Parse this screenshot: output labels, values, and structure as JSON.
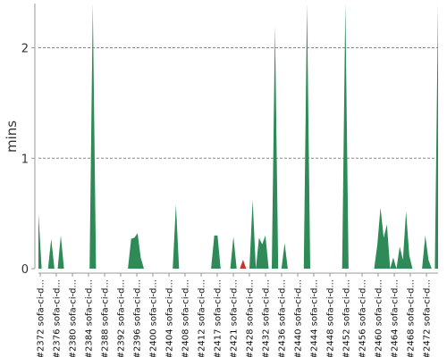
{
  "chart_data": {
    "type": "area",
    "title": "",
    "xlabel": "",
    "ylabel": "mins",
    "ylim": [
      0,
      2.4
    ],
    "yticks": [
      0,
      1,
      2
    ],
    "grid": "horizontal dashed at 1 and 2",
    "colors": {
      "normal": "#2e8b57",
      "highlight": "#c0392b",
      "grid": "#888888",
      "axis": "#999999"
    },
    "x_tick_labels": [
      "#2372 sofa-ci-d...",
      "#2376 sofa-ci-d...",
      "#2380 sofa-ci-d...",
      "#2384 sofa-ci-d...",
      "#2388 sofa-ci-d...",
      "#2392 sofa-ci-d...",
      "#2396 sofa-ci-d...",
      "#2400 sofa-ci-d...",
      "#2404 sofa-ci-d...",
      "#2408 sofa-ci-d...",
      "#2412 sofa-ci-d...",
      "#2417 sofa-ci-d...",
      "#2421 sofa-ci-d...",
      "#2428 sofa-ci-d...",
      "#2432 sofa-ci-d...",
      "#2436 sofa-ci-d...",
      "#2440 sofa-ci-d...",
      "#2444 sofa-ci-d...",
      "#2448 sofa-ci-d...",
      "#2452 sofa-ci-d...",
      "#2456 sofa-ci-d...",
      "#2460 sofa-ci-d...",
      "#2464 sofa-ci-d...",
      "#2468 sofa-ci-d...",
      "#2472 sofa-ci-d..."
    ],
    "series": [
      {
        "values": [
          0.5,
          0,
          0,
          0,
          0.27,
          0,
          0,
          0.3,
          0,
          0,
          0,
          0,
          0,
          0,
          0,
          0,
          0,
          2.5,
          0,
          0,
          0,
          0,
          0,
          0,
          0,
          0,
          0,
          0,
          0,
          0.27,
          0.28,
          0.32,
          0.1,
          0,
          0,
          0,
          0,
          0,
          0,
          0,
          0,
          0,
          0,
          0.58,
          0,
          0,
          0,
          0,
          0,
          0,
          0,
          0,
          0,
          0,
          0,
          0.3,
          0.3,
          0,
          0,
          0,
          0,
          0.29,
          0,
          0,
          0.08,
          0,
          0,
          0.62,
          0,
          0.28,
          0.22,
          0.3,
          0,
          0,
          2.2,
          0,
          0,
          0.23,
          0,
          0,
          0,
          0,
          0,
          0,
          2.5,
          0,
          0,
          0,
          0,
          0,
          0,
          0,
          0,
          0,
          0,
          0,
          2.5,
          0,
          0,
          0,
          0,
          0,
          0,
          0,
          0,
          0,
          0.22,
          0.55,
          0.28,
          0.4,
          0,
          0.1,
          0,
          0.2,
          0.08,
          0.52,
          0.12,
          0,
          0,
          0,
          0,
          0.3,
          0.08,
          0,
          0,
          2.5
        ],
        "highlight_indices": [
          64
        ]
      }
    ]
  }
}
